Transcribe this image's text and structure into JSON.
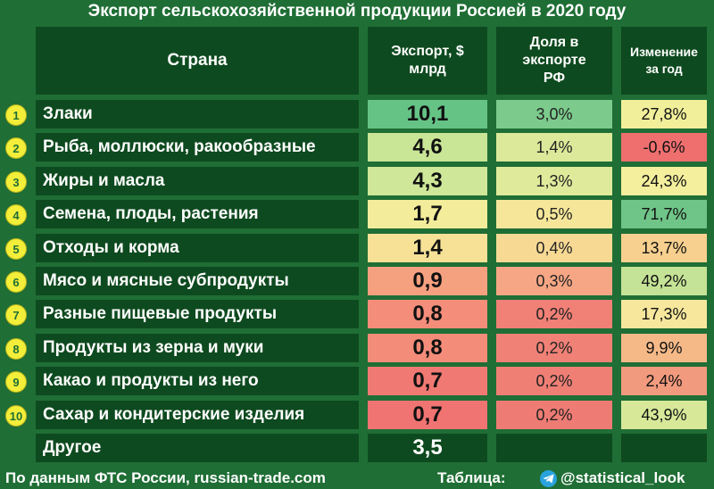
{
  "title": "Экспорт сельскохозяйственной продукции Россией в 2020 году",
  "headers": {
    "country": "Страна",
    "export_line1": "Экспорт, $",
    "export_line2": "млрд",
    "share_line1": "Доля в",
    "share_line2": "экспорте",
    "share_line3": "РФ",
    "change_line1": "Изменение",
    "change_line2": "за год"
  },
  "chart_data": {
    "type": "table",
    "title": "Экспорт сельскохозяйственной продукции Россией в 2020 году",
    "columns": [
      "Страна",
      "Экспорт, $ млрд",
      "Доля в экспорте РФ",
      "Изменение за год"
    ],
    "rows": [
      {
        "rank": "1",
        "name": "Злаки",
        "export": "10,1",
        "share": "3,0%",
        "change": "27,8%",
        "export_color": "#66c386",
        "share_color": "#7ccb8c",
        "change_color": "#f1ef9a"
      },
      {
        "rank": "2",
        "name": "Рыба, моллюски, ракообразные",
        "export": "4,6",
        "share": "1,4%",
        "change": "-0,6%",
        "export_color": "#c9e596",
        "share_color": "#dce99a",
        "change_color": "#ef6f6f"
      },
      {
        "rank": "3",
        "name": "Жиры и масла",
        "export": "4,3",
        "share": "1,3%",
        "change": "24,3%",
        "export_color": "#cfe798",
        "share_color": "#e0ea9b",
        "change_color": "#f4ef9d"
      },
      {
        "rank": "4",
        "name": "Семена, плоды, растения",
        "export": "1,7",
        "share": "0,5%",
        "change": "71,7%",
        "export_color": "#f3ec9a",
        "share_color": "#f5e69a",
        "change_color": "#6fc487"
      },
      {
        "rank": "5",
        "name": "Отходы и корма",
        "export": "1,4",
        "share": "0,4%",
        "change": "13,7%",
        "export_color": "#f6e196",
        "share_color": "#f7d994",
        "change_color": "#f7d08f"
      },
      {
        "rank": "6",
        "name": "Мясо и  мясные субпродукты",
        "export": "0,9",
        "share": "0,3%",
        "change": "49,2%",
        "export_color": "#f5a07f",
        "share_color": "#f6a684",
        "change_color": "#c5e396"
      },
      {
        "rank": "7",
        "name": "Разные пищевые продукты",
        "export": "0,8",
        "share": "0,2%",
        "change": "17,3%",
        "export_color": "#f48e7a",
        "share_color": "#f18076",
        "change_color": "#f6e79c"
      },
      {
        "rank": "8",
        "name": "Продукты из зерна и муки",
        "export": "0,8",
        "share": "0,2%",
        "change": "9,9%",
        "export_color": "#f38c79",
        "share_color": "#f08176",
        "change_color": "#f5b988"
      },
      {
        "rank": "9",
        "name": "Какао и продукты из него",
        "export": "0,7",
        "share": "0,2%",
        "change": "2,4%",
        "export_color": "#f07a73",
        "share_color": "#ef7f75",
        "change_color": "#f29a7e"
      },
      {
        "rank": "10",
        "name": "Сахар и кондитерские изделия",
        "export": "0,7",
        "share": "0,2%",
        "change": "43,9%",
        "export_color": "#ef7472",
        "share_color": "#ef7c74",
        "change_color": "#d7e999"
      }
    ],
    "other": {
      "name": "Другое",
      "export": "3,5"
    }
  },
  "footer": {
    "source": "По данным ФТС России, russian-trade.com",
    "table_label": "Таблица:",
    "handle": "@statistical_look",
    "icon": "telegram-icon"
  }
}
